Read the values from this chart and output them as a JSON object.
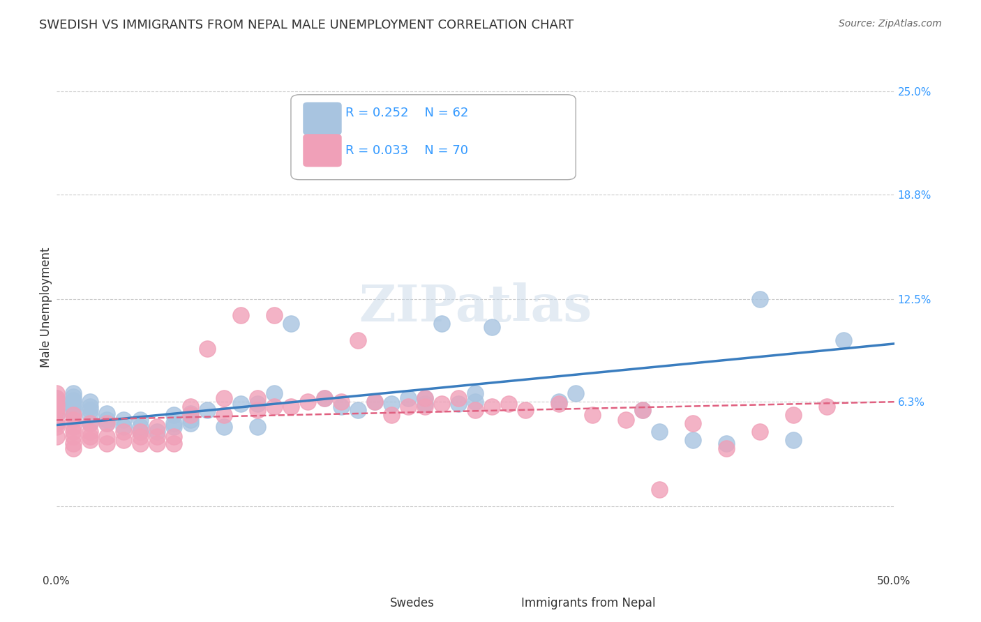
{
  "title": "SWEDISH VS IMMIGRANTS FROM NEPAL MALE UNEMPLOYMENT CORRELATION CHART",
  "source": "Source: ZipAtlas.com",
  "xlabel_bottom": "",
  "ylabel": "Male Unemployment",
  "xticks": [
    0.0,
    0.1,
    0.2,
    0.3,
    0.4,
    0.5
  ],
  "xtick_labels": [
    "0.0%",
    "",
    "",
    "",
    "",
    "50.0%"
  ],
  "ytick_labels": [
    "6.3%",
    "12.5%",
    "18.8%",
    "25.0%"
  ],
  "ytick_values": [
    0.063,
    0.125,
    0.188,
    0.25
  ],
  "xlim": [
    0.0,
    0.5
  ],
  "ylim": [
    -0.04,
    0.28
  ],
  "background_color": "#ffffff",
  "grid_color": "#cccccc",
  "watermark": "ZIPatlas",
  "series": [
    {
      "label": "Swedes",
      "R": 0.252,
      "N": 62,
      "color": "#a8c4e0",
      "line_color": "#3a7dbf",
      "line_style": "solid",
      "x": [
        0.0,
        0.0,
        0.0,
        0.0,
        0.0,
        0.0,
        0.01,
        0.01,
        0.01,
        0.01,
        0.01,
        0.01,
        0.01,
        0.02,
        0.02,
        0.02,
        0.02,
        0.02,
        0.03,
        0.03,
        0.03,
        0.04,
        0.04,
        0.05,
        0.05,
        0.05,
        0.06,
        0.07,
        0.07,
        0.07,
        0.08,
        0.08,
        0.08,
        0.09,
        0.1,
        0.11,
        0.12,
        0.12,
        0.13,
        0.14,
        0.16,
        0.17,
        0.18,
        0.19,
        0.2,
        0.21,
        0.22,
        0.22,
        0.23,
        0.24,
        0.25,
        0.25,
        0.26,
        0.3,
        0.31,
        0.35,
        0.36,
        0.38,
        0.4,
        0.42,
        0.44,
        0.47
      ],
      "y": [
        0.055,
        0.058,
        0.06,
        0.062,
        0.063,
        0.065,
        0.055,
        0.058,
        0.06,
        0.062,
        0.064,
        0.066,
        0.068,
        0.05,
        0.055,
        0.058,
        0.06,
        0.063,
        0.05,
        0.052,
        0.056,
        0.048,
        0.052,
        0.045,
        0.048,
        0.052,
        0.045,
        0.048,
        0.05,
        0.055,
        0.05,
        0.052,
        0.056,
        0.058,
        0.048,
        0.062,
        0.048,
        0.062,
        0.068,
        0.11,
        0.065,
        0.06,
        0.058,
        0.063,
        0.062,
        0.065,
        0.062,
        0.065,
        0.11,
        0.062,
        0.063,
        0.068,
        0.108,
        0.063,
        0.068,
        0.058,
        0.045,
        0.04,
        0.038,
        0.125,
        0.04,
        0.1
      ]
    },
    {
      "label": "Immigrants from Nepal",
      "R": 0.033,
      "N": 70,
      "color": "#f0a0b8",
      "line_color": "#e06080",
      "line_style": "dashed",
      "x": [
        0.0,
        0.0,
        0.0,
        0.0,
        0.0,
        0.0,
        0.0,
        0.0,
        0.0,
        0.0,
        0.01,
        0.01,
        0.01,
        0.01,
        0.01,
        0.01,
        0.01,
        0.02,
        0.02,
        0.02,
        0.02,
        0.03,
        0.03,
        0.03,
        0.04,
        0.04,
        0.05,
        0.05,
        0.05,
        0.06,
        0.06,
        0.06,
        0.07,
        0.07,
        0.08,
        0.08,
        0.09,
        0.1,
        0.1,
        0.11,
        0.12,
        0.12,
        0.13,
        0.13,
        0.14,
        0.15,
        0.16,
        0.17,
        0.18,
        0.19,
        0.2,
        0.21,
        0.22,
        0.22,
        0.23,
        0.24,
        0.25,
        0.26,
        0.27,
        0.28,
        0.3,
        0.32,
        0.34,
        0.35,
        0.36,
        0.38,
        0.4,
        0.42,
        0.44,
        0.46
      ],
      "y": [
        0.05,
        0.055,
        0.058,
        0.06,
        0.062,
        0.065,
        0.068,
        0.05,
        0.048,
        0.042,
        0.035,
        0.038,
        0.042,
        0.045,
        0.048,
        0.052,
        0.055,
        0.04,
        0.042,
        0.045,
        0.05,
        0.038,
        0.042,
        0.05,
        0.04,
        0.045,
        0.038,
        0.042,
        0.045,
        0.038,
        0.042,
        0.048,
        0.038,
        0.042,
        0.055,
        0.06,
        0.095,
        0.055,
        0.065,
        0.115,
        0.058,
        0.065,
        0.06,
        0.115,
        0.06,
        0.063,
        0.065,
        0.063,
        0.1,
        0.063,
        0.055,
        0.06,
        0.06,
        0.065,
        0.062,
        0.065,
        0.058,
        0.06,
        0.062,
        0.058,
        0.062,
        0.055,
        0.052,
        0.058,
        0.01,
        0.05,
        0.035,
        0.045,
        0.055,
        0.06
      ]
    }
  ],
  "trend_lines": [
    {
      "color": "#3a7dbf",
      "style": "solid",
      "x_start": 0.0,
      "x_end": 0.5,
      "y_start": 0.049,
      "y_end": 0.098
    },
    {
      "color": "#e06080",
      "style": "dashed",
      "x_start": 0.0,
      "x_end": 0.5,
      "y_start": 0.052,
      "y_end": 0.063
    }
  ],
  "legend": {
    "swedes_color": "#a8c4e0",
    "nepal_color": "#f0a0b8",
    "swedes_R": "R = 0.252",
    "swedes_N": "N = 62",
    "nepal_R": "R = 0.033",
    "nepal_N": "N = 70",
    "text_color": "#3399ff"
  }
}
